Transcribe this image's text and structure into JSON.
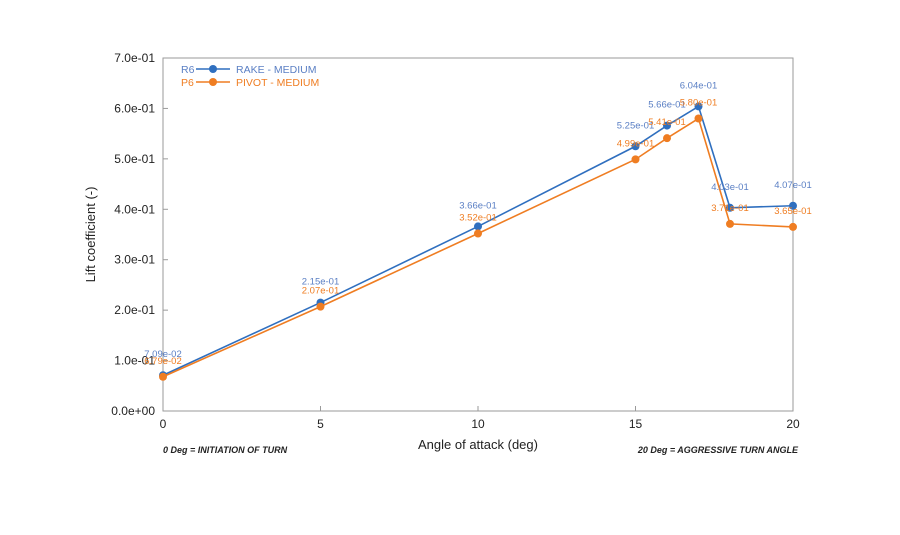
{
  "chart_data": {
    "type": "line",
    "xlabel": "Angle of attack (deg)",
    "ylabel": "Lift coefficient (-)",
    "xlim": [
      0,
      20
    ],
    "ylim": [
      0,
      0.7
    ],
    "xticks": [
      "0",
      "5",
      "10",
      "15",
      "20"
    ],
    "yticks": [
      "0.0e+00",
      "1.0e-01",
      "2.0e-01",
      "3.0e-01",
      "4.0e-01",
      "5.0e-01",
      "6.0e-01",
      "7.0e-01"
    ],
    "grid": false,
    "legend_position": "top-left",
    "notes": {
      "left": "0 Deg = INITIATION OF TURN",
      "right": "20 Deg = AGGRESSIVE TURN ANGLE"
    },
    "series": [
      {
        "name": "RAKE - MEDIUM",
        "code": "R6",
        "color": "#2f6fbf",
        "label_color": "#5a7fc4",
        "x": [
          0,
          5,
          10,
          15,
          16,
          17,
          18,
          20
        ],
        "y": [
          0.0709,
          0.215,
          0.366,
          0.525,
          0.566,
          0.604,
          0.403,
          0.407
        ],
        "labels": [
          "7.09e-02",
          "2.15e-01",
          "3.66e-01",
          "5.25e-01",
          "5.66e-01",
          "6.04e-01",
          "4.03e-01",
          "4.07e-01"
        ]
      },
      {
        "name": "PIVOT - MEDIUM",
        "code": "P6",
        "color": "#ef7d22",
        "label_color": "#ef7d22",
        "x": [
          0,
          5,
          10,
          15,
          16,
          17,
          18,
          20
        ],
        "y": [
          0.0679,
          0.207,
          0.352,
          0.499,
          0.541,
          0.58,
          0.371,
          0.365
        ],
        "labels": [
          "6.79e-02",
          "2.07e-01",
          "3.52e-01",
          "4.99e-01",
          "5.41e-01",
          "5.80e-01",
          "3.71e-01",
          "3.65e-01"
        ]
      }
    ]
  }
}
